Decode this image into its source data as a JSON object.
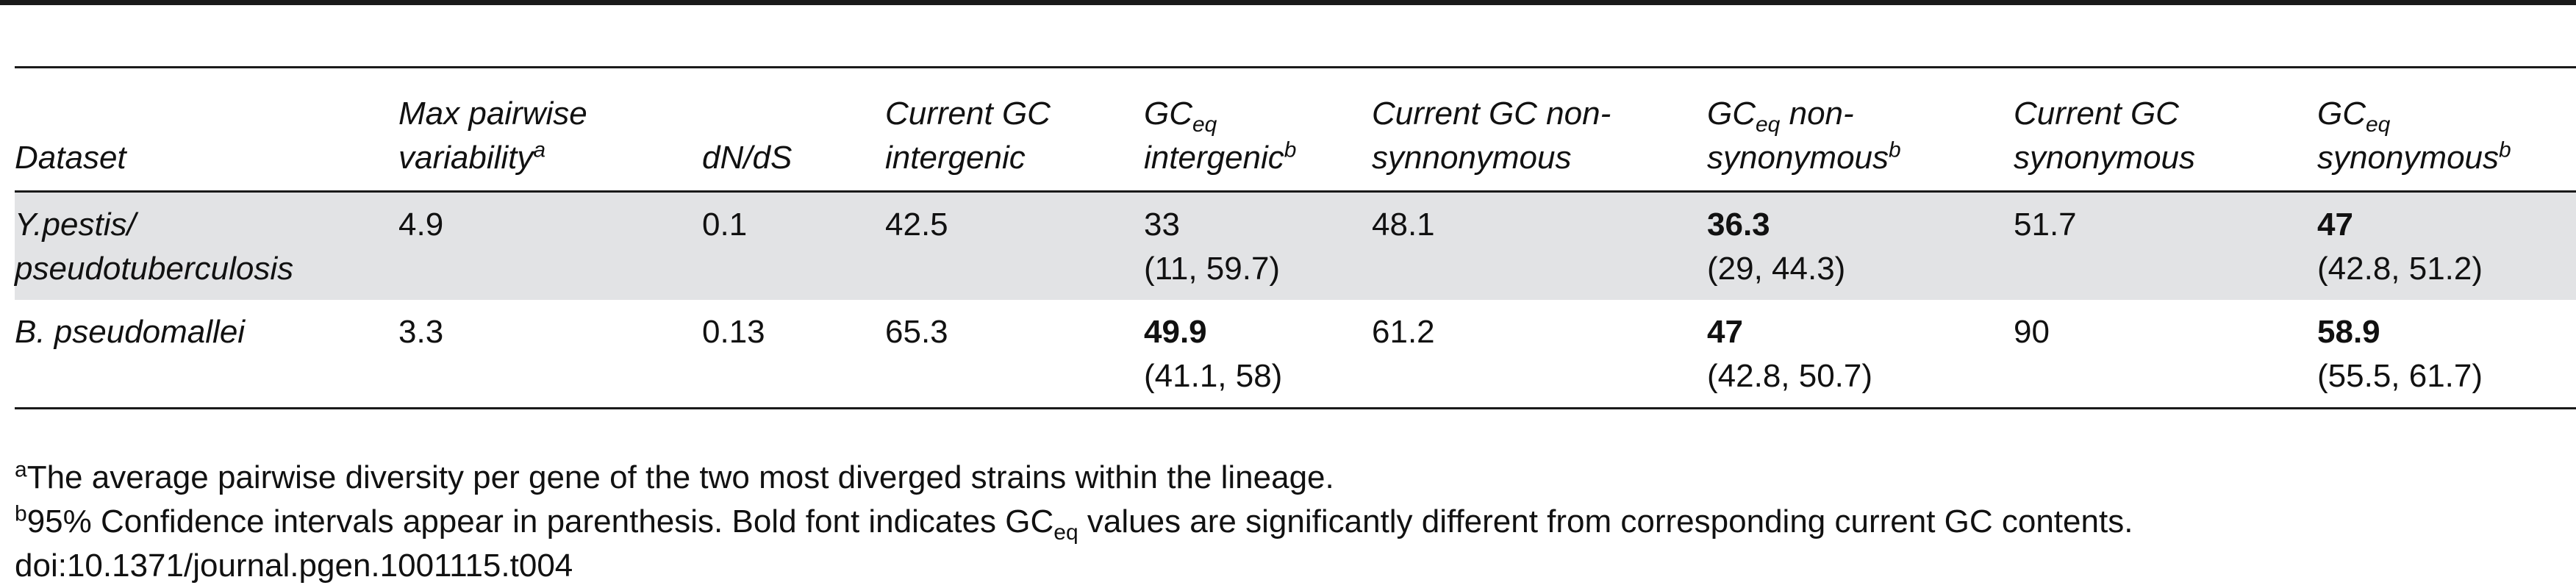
{
  "headers": {
    "dataset": "Dataset",
    "max_pairwise_1": "Max pairwise",
    "max_pairwise_2": "variability",
    "max_pairwise_sup": "a",
    "dnds": "dN/dS",
    "current_gc_intergenic_1": "Current GC",
    "current_gc_intergenic_2": "intergenic",
    "gceq_intergenic_gc": "GC",
    "gceq_intergenic_sub": "eq",
    "gceq_intergenic_2": "intergenic",
    "gceq_intergenic_sup": "b",
    "current_gc_nonsyn_1": "Current GC non-",
    "current_gc_nonsyn_2": "synnonymous",
    "gceq_nonsyn_gc": "GC",
    "gceq_nonsyn_sub": "eq",
    "gceq_nonsyn_1b": " non-",
    "gceq_nonsyn_2": "synonymous",
    "gceq_nonsyn_sup": "b",
    "current_gc_syn_1": "Current GC",
    "current_gc_syn_2": "synonymous",
    "gceq_syn_gc": "GC",
    "gceq_syn_sub": "eq",
    "gceq_syn_2": "synonymous",
    "gceq_syn_sup": "b"
  },
  "rows": [
    {
      "dataset_1": "Y.pestis/",
      "dataset_2": "pseudotuberculosis",
      "max_pairwise": "4.9",
      "dnds": "0.1",
      "current_gc_intergenic": "42.5",
      "gceq_intergenic": "33",
      "gceq_intergenic_ci": "(11, 59.7)",
      "current_gc_nonsyn": "48.1",
      "gceq_nonsyn": "36.3",
      "gceq_nonsyn_ci": "(29, 44.3)",
      "current_gc_syn": "51.7",
      "gceq_syn": "47",
      "gceq_syn_ci": "(42.8, 51.2)"
    },
    {
      "dataset_1": "B. pseudomallei",
      "max_pairwise": "3.3",
      "dnds": "0.13",
      "current_gc_intergenic": "65.3",
      "gceq_intergenic": "49.9",
      "gceq_intergenic_ci": "(41.1, 58)",
      "current_gc_nonsyn": "61.2",
      "gceq_nonsyn": "47",
      "gceq_nonsyn_ci": "(42.8, 50.7)",
      "current_gc_syn": "90",
      "gceq_syn": "58.9",
      "gceq_syn_ci": "(55.5, 61.7)"
    }
  ],
  "footnotes": {
    "a_sup": "a",
    "a_text": "The average pairwise diversity per gene of the two most diverged strains within the lineage.",
    "b_sup": "b",
    "b_text_1": "95% Confidence intervals appear in parenthesis. Bold font indicates GC",
    "b_sub": "eq",
    "b_text_2": " values are significantly different from corresponding current GC contents.",
    "doi": "doi:10.1371/journal.pgen.1001115.t004"
  }
}
